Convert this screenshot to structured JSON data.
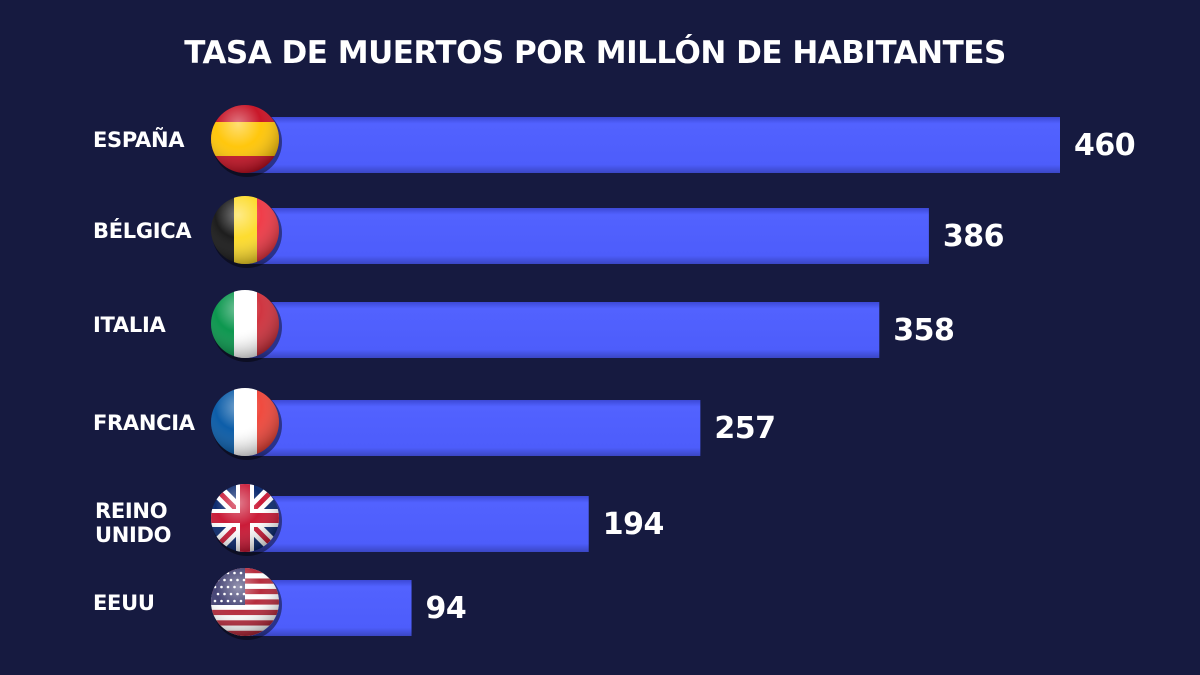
{
  "colors": {
    "background": "#161a40",
    "bar": "#4f5ffd",
    "text": "#ffffff"
  },
  "chart_data": {
    "type": "bar",
    "orientation": "horizontal",
    "title": "TASA DE MUERTOS POR MILLÓN DE HABITANTES",
    "categories": [
      "ESPAÑA",
      "BÉLGICA",
      "ITALIA",
      "FRANCIA",
      "REINO UNIDO",
      "EEUU"
    ],
    "category_lines": [
      [
        "ESPAÑA"
      ],
      [
        "BÉLGICA"
      ],
      [
        "ITALIA"
      ],
      [
        "FRANCIA"
      ],
      [
        "REINO",
        "UNIDO"
      ],
      [
        "EEUU"
      ]
    ],
    "values": [
      460,
      386,
      358,
      257,
      194,
      94
    ],
    "value_labels": [
      "460",
      "386",
      "358",
      "257",
      "194",
      "94"
    ],
    "flags": [
      "spain-flag",
      "belgium-flag",
      "italy-flag",
      "france-flag",
      "uk-flag",
      "usa-flag"
    ],
    "xlim": [
      0,
      460
    ],
    "grid": false,
    "legend": "none"
  }
}
